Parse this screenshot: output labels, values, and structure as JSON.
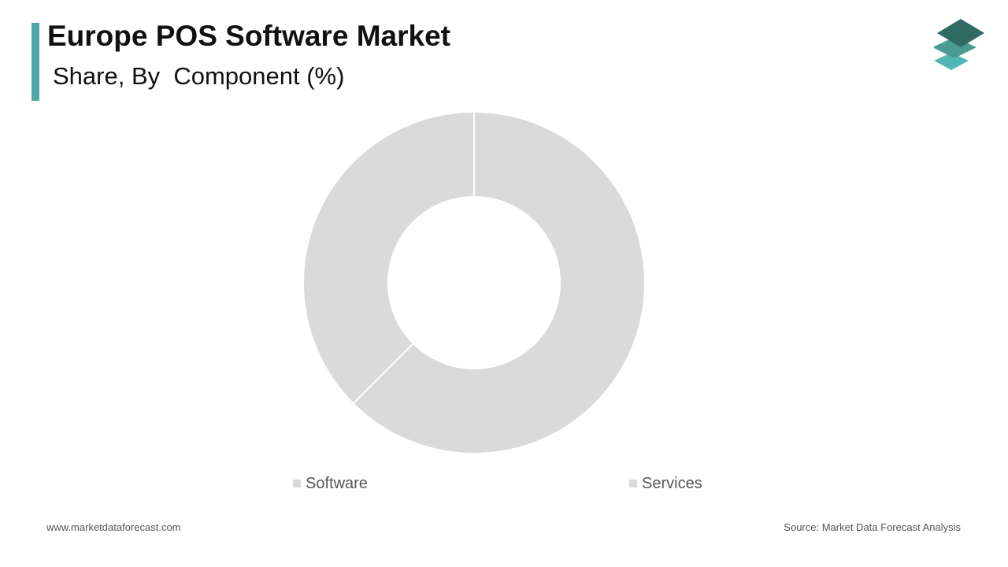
{
  "header": {
    "title": "Europe POS Software Market",
    "subtitle": "Share, By  Component (%)"
  },
  "colors": {
    "accent": "#4aa9a6",
    "slice": "#dadada",
    "logo_dark": "#2f6b63",
    "logo_mid": "#4a9c91",
    "logo_light": "#4fb6b3"
  },
  "logo": {
    "icon": "layered-stack-icon"
  },
  "chart_data": {
    "type": "pie",
    "style": "donut",
    "title": "",
    "slices": [
      {
        "label": "Software",
        "value": 62.5
      },
      {
        "label": "Services",
        "value": 37.5
      }
    ],
    "legend_position": "bottom"
  },
  "footer": {
    "website": "www.marketdataforecast.com",
    "source": "Source: Market Data Forecast Analysis"
  }
}
